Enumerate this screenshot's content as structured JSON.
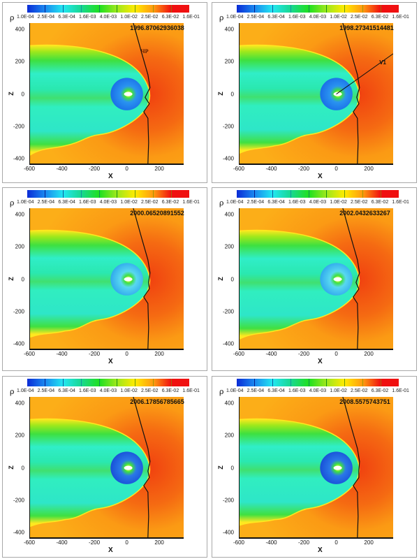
{
  "chart_data": {
    "type": "heatmap",
    "title": "",
    "variable": "ρ",
    "xlabel": "X",
    "ylabel": "Z",
    "xlim": [
      -600,
      350
    ],
    "ylim": [
      -430,
      440
    ],
    "x_ticks": [
      "-600",
      "-400",
      "-200",
      "0",
      "200"
    ],
    "y_ticks": [
      "400",
      "200",
      "0",
      "-200",
      "-400"
    ],
    "colorbar": {
      "scale": "log",
      "labels": [
        "1.0E-04",
        "2.5E-04",
        "6.3E-04",
        "1.6E-03",
        "4.0E-03",
        "1.0E-02",
        "2.5E-02",
        "6.3E-02",
        "1.6E-01"
      ],
      "colors": [
        "#0a2bd6",
        "#1a88f0",
        "#22e6f0",
        "#18d890",
        "#20e020",
        "#9ee81c",
        "#ffea00",
        "#ff9a10",
        "#f01010"
      ]
    },
    "panels": [
      {
        "time": "1996.87062936038",
        "annotations": [
          "HP"
        ]
      },
      {
        "time": "1998.27341514481",
        "annotations": [
          "V1"
        ]
      },
      {
        "time": "2000.06520891552",
        "annotations": []
      },
      {
        "time": "2002.0432633267",
        "annotations": []
      },
      {
        "time": "2006.17856785665",
        "annotations": []
      },
      {
        "time": "2008.5575743751",
        "annotations": []
      }
    ]
  },
  "labels": {
    "rho": "ρ",
    "x": "X",
    "z": "Z",
    "hp": "HP",
    "v1": "V1"
  }
}
